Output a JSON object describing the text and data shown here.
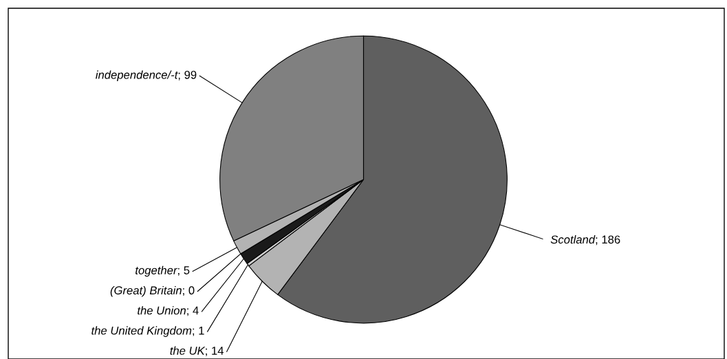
{
  "chart_data": {
    "type": "pie",
    "categories": [
      "Scotland",
      "the UK",
      "the United Kingdom",
      "the Union",
      "(Great) Britain",
      "together",
      "independence/-t"
    ],
    "values": [
      186,
      14,
      1,
      4,
      0,
      5,
      99
    ],
    "colors": [
      "#5f5f5f",
      "#b3b3b3",
      "#d0d0d0",
      "#1a1a1a",
      "#404040",
      "#b3b3b3",
      "#808080"
    ],
    "value_labels": [
      "; 186",
      "; 14",
      "; 1",
      "; 4",
      "; 0",
      "; 5",
      "; 99"
    ]
  }
}
